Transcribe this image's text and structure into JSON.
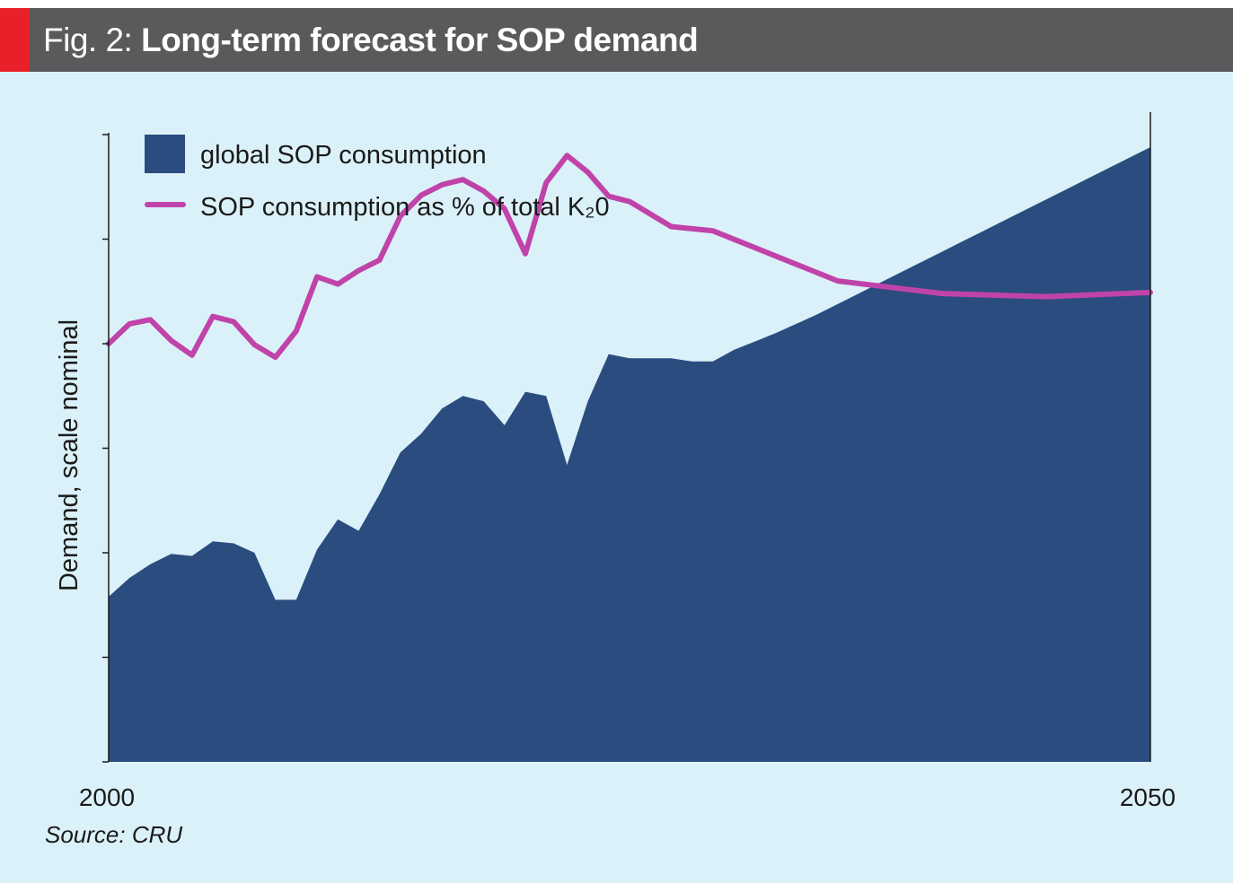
{
  "header": {
    "prefix": "Fig. 2:",
    "title": "Long-term forecast for SOP demand"
  },
  "source": "Source: CRU",
  "colors": {
    "header_bg": "#5a595b",
    "accent": "#e8202a",
    "plot_bg": "#dbf1f9",
    "area": "#2b4c7e",
    "line": "#c043a9"
  },
  "chart_data": {
    "type": "area",
    "title": "Long-term forecast for SOP demand",
    "ylabel": "Demand, scale nominal",
    "xlabel": "",
    "xlim": [
      2000,
      2050
    ],
    "ylim": [
      0,
      6
    ],
    "x_tick_labels": [
      "2000",
      "2050"
    ],
    "grid": false,
    "legend_position": "top-left",
    "series": [
      {
        "name": "global SOP consumption",
        "kind": "area",
        "x": [
          2000,
          2001,
          2002,
          2003,
          2004,
          2005,
          2006,
          2007,
          2008,
          2009,
          2010,
          2011,
          2012,
          2013,
          2014,
          2015,
          2016,
          2017,
          2018,
          2019,
          2020,
          2021,
          2022,
          2023,
          2024,
          2025,
          2026,
          2027,
          2028,
          2029,
          2030,
          2031,
          2032,
          2033,
          2034,
          2035,
          2036,
          2037,
          2038,
          2039,
          2040,
          2041,
          2042,
          2043,
          2044,
          2045,
          2046,
          2047,
          2048,
          2049,
          2050
        ],
        "values": [
          1.58,
          1.76,
          1.89,
          1.99,
          1.97,
          2.11,
          2.09,
          2.0,
          1.55,
          1.55,
          2.03,
          2.32,
          2.21,
          2.56,
          2.96,
          3.14,
          3.38,
          3.5,
          3.45,
          3.22,
          3.54,
          3.5,
          2.84,
          3.45,
          3.9,
          3.86,
          3.86,
          3.86,
          3.83,
          3.83,
          3.94,
          4.02,
          4.1,
          4.19,
          4.28,
          4.38,
          4.48,
          4.58,
          4.68,
          4.78,
          4.88,
          4.98,
          5.08,
          5.18,
          5.28,
          5.38,
          5.48,
          5.58,
          5.68,
          5.78,
          5.88
        ]
      },
      {
        "name": "SOP consumption as % of total K₂0",
        "kind": "line",
        "x": [
          2000,
          2001,
          2002,
          2003,
          2004,
          2005,
          2006,
          2007,
          2008,
          2009,
          2010,
          2011,
          2012,
          2013,
          2014,
          2015,
          2016,
          2017,
          2018,
          2019,
          2020,
          2021,
          2022,
          2023,
          2024,
          2025,
          2026,
          2027,
          2028,
          2029,
          2035,
          2040,
          2045,
          2050
        ],
        "values": [
          4.0,
          4.19,
          4.23,
          4.03,
          3.89,
          4.26,
          4.21,
          3.99,
          3.87,
          4.12,
          4.64,
          4.57,
          4.7,
          4.8,
          5.22,
          5.42,
          5.52,
          5.57,
          5.46,
          5.29,
          4.86,
          5.54,
          5.8,
          5.64,
          5.41,
          5.36,
          5.24,
          5.12,
          5.1,
          5.08,
          4.6,
          4.48,
          4.45,
          4.49
        ]
      }
    ]
  }
}
